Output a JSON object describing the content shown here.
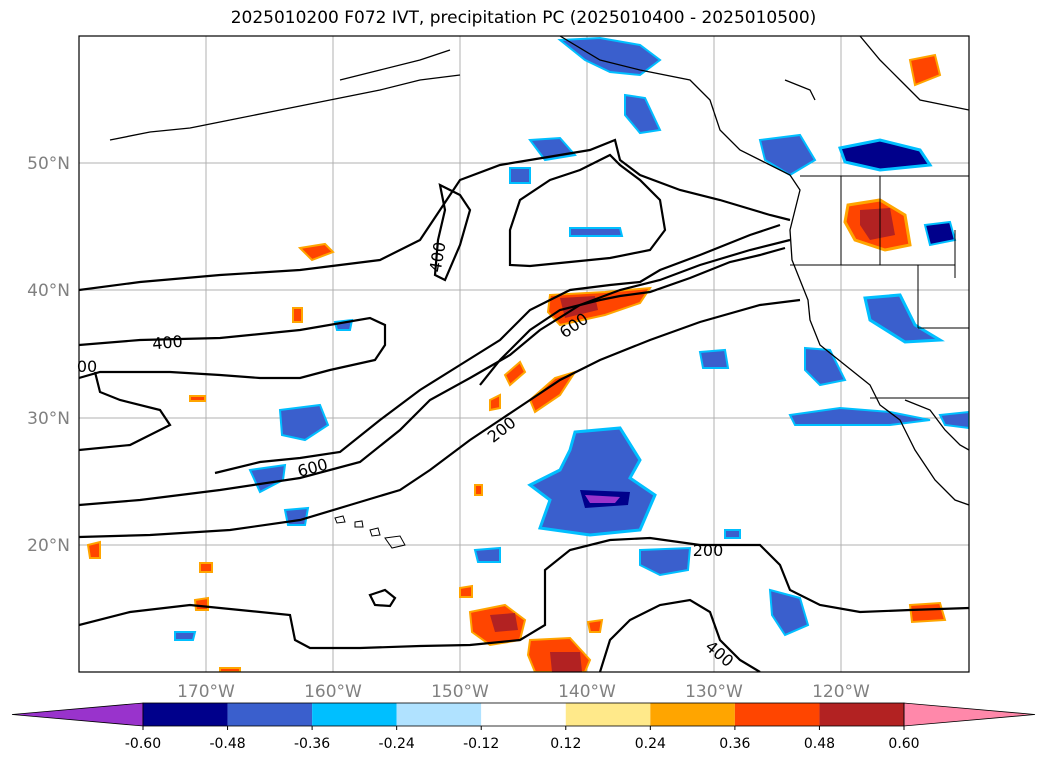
{
  "title": "2025010200 F072 IVT, precipitation PC (2025010400 - 2025010500)",
  "map": {
    "lat_ticks": [
      "50°N",
      "40°N",
      "30°N",
      "20°N"
    ],
    "lon_ticks": [
      "170°W",
      "160°W",
      "150°W",
      "140°W",
      "130°W",
      "120°W"
    ],
    "ivt_contour_labels": [
      "400",
      "400",
      "600",
      "600",
      "200",
      "200",
      "400",
      "00"
    ]
  },
  "colorbar": {
    "labels": [
      "-0.60",
      "-0.48",
      "-0.36",
      "-0.24",
      "-0.12",
      "0.12",
      "0.24",
      "0.36",
      "0.48",
      "0.60"
    ],
    "colors": [
      "#9933cc",
      "#00008b",
      "#3a5fcd",
      "#00bfff",
      "#b0e2ff",
      "#ffffff",
      "#ffe98a",
      "#ffa500",
      "#ff4500",
      "#b22222",
      "#ff88aa"
    ]
  }
}
